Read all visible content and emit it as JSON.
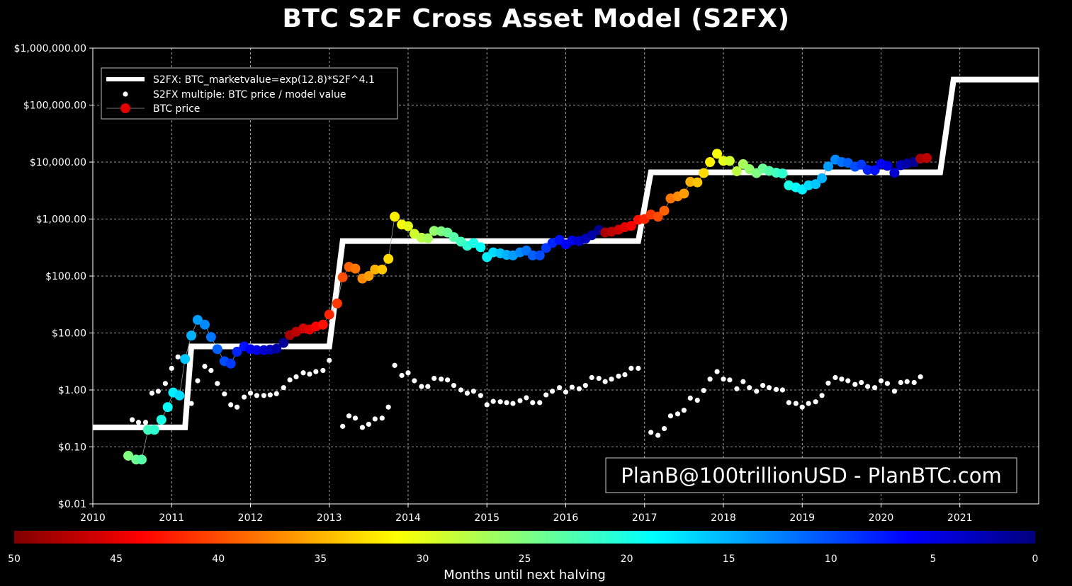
{
  "chart_data": {
    "type": "scatter",
    "title": "BTC S2F Cross Asset Model (S2FX)",
    "y_scale": "log",
    "ylim": [
      0.01,
      1000000
    ],
    "xlim": [
      2010,
      2022
    ],
    "y_tick_values": [
      0.01,
      0.1,
      1,
      10,
      100,
      1000,
      10000,
      100000,
      1000000
    ],
    "y_tick_labels": [
      "$0.01",
      "$0.10",
      "$1.00",
      "$10.00",
      "$100.00",
      "$1,000.00",
      "$10,000.00",
      "$100,000.00",
      "$1,000,000.00"
    ],
    "x_tick_values": [
      2010,
      2011,
      2012,
      2013,
      2014,
      2015,
      2016,
      2017,
      2018,
      2019,
      2020,
      2021
    ],
    "x_tick_labels": [
      "2010",
      "2011",
      "2012",
      "2013",
      "2014",
      "2015",
      "2016",
      "2017",
      "2018",
      "2019",
      "2020",
      "2021"
    ],
    "grid": true,
    "legend_position": "top-left",
    "legend": [
      {
        "label": "S2FX: BTC_marketvalue=exp(12.8)*S2F^4.1",
        "style": "line",
        "color": "#ffffff"
      },
      {
        "label": "S2FX multiple: BTC price / model value",
        "style": "dot",
        "color": "#ffffff"
      },
      {
        "label": "BTC price",
        "style": "dot",
        "color": "#e00000"
      }
    ],
    "model_line": {
      "name": "S2FX: BTC_marketvalue=exp(12.8)*S2F^4.1",
      "x": [
        2010,
        2011.17,
        2011.25,
        2013.0,
        2013.17,
        2016.92,
        2017.08,
        2020.75,
        2020.92,
        2022
      ],
      "y": [
        0.22,
        0.22,
        5.8,
        5.8,
        410,
        410,
        6600,
        6600,
        280000,
        280000
      ]
    },
    "multiple_series": {
      "name": "S2FX multiple: BTC price / model value",
      "x": [
        2010.5,
        2010.58,
        2010.67,
        2010.75,
        2010.83,
        2010.92,
        2011.0,
        2011.08,
        2011.17,
        2011.25,
        2011.33,
        2011.42,
        2011.5,
        2011.58,
        2011.67,
        2011.75,
        2011.83,
        2011.92,
        2012.0,
        2012.08,
        2012.17,
        2012.25,
        2012.33,
        2012.42,
        2012.5,
        2012.58,
        2012.67,
        2012.75,
        2012.83,
        2012.92,
        2013.0,
        2013.17,
        2013.25,
        2013.33,
        2013.42,
        2013.5,
        2013.58,
        2013.67,
        2013.75,
        2013.83,
        2013.92,
        2014.0,
        2014.08,
        2014.17,
        2014.25,
        2014.33,
        2014.42,
        2014.5,
        2014.58,
        2014.67,
        2014.75,
        2014.83,
        2014.92,
        2015.0,
        2015.08,
        2015.17,
        2015.25,
        2015.33,
        2015.42,
        2015.5,
        2015.58,
        2015.67,
        2015.75,
        2015.83,
        2015.92,
        2016.0,
        2016.08,
        2016.17,
        2016.25,
        2016.33,
        2016.42,
        2016.5,
        2016.58,
        2016.67,
        2016.75,
        2016.83,
        2016.92,
        2017.08,
        2017.17,
        2017.25,
        2017.33,
        2017.42,
        2017.5,
        2017.58,
        2017.67,
        2017.75,
        2017.83,
        2017.92,
        2018.0,
        2018.08,
        2018.17,
        2018.25,
        2018.33,
        2018.42,
        2018.5,
        2018.58,
        2018.67,
        2018.75,
        2018.83,
        2018.92,
        2019.0,
        2019.08,
        2019.17,
        2019.25,
        2019.33,
        2019.42,
        2019.5,
        2019.58,
        2019.67,
        2019.75,
        2019.83,
        2019.92,
        2020.0,
        2020.08,
        2020.17,
        2020.25,
        2020.33,
        2020.42,
        2020.5
      ],
      "y": [
        0.3,
        0.27,
        0.27,
        0.88,
        0.95,
        1.3,
        2.4,
        3.8,
        3.5,
        0.58,
        1.45,
        2.6,
        2.2,
        1.3,
        0.85,
        0.55,
        0.5,
        0.75,
        0.88,
        0.8,
        0.8,
        0.82,
        0.86,
        1.1,
        1.5,
        1.7,
        2.0,
        1.9,
        2.1,
        2.2,
        3.3,
        0.23,
        0.35,
        0.32,
        0.22,
        0.25,
        0.31,
        0.32,
        0.5,
        2.7,
        1.8,
        2.0,
        1.45,
        1.15,
        1.15,
        1.6,
        1.55,
        1.5,
        1.2,
        1.0,
        0.88,
        0.95,
        0.8,
        0.55,
        0.63,
        0.62,
        0.6,
        0.58,
        0.65,
        0.73,
        0.6,
        0.6,
        0.82,
        0.95,
        1.1,
        0.92,
        1.12,
        1.05,
        1.2,
        1.65,
        1.6,
        1.4,
        1.55,
        1.75,
        1.85,
        2.4,
        2.4,
        0.18,
        0.16,
        0.21,
        0.35,
        0.38,
        0.44,
        0.72,
        0.66,
        0.98,
        1.55,
        2.1,
        1.55,
        1.5,
        1.05,
        1.4,
        1.1,
        0.95,
        1.2,
        1.1,
        1.02,
        1.0,
        0.6,
        0.58,
        0.5,
        0.58,
        0.62,
        0.8,
        1.32,
        1.65,
        1.55,
        1.45,
        1.25,
        1.35,
        1.15,
        1.1,
        1.45,
        1.3,
        0.95,
        1.35,
        1.4,
        1.35,
        1.7
      ]
    },
    "price_series": {
      "name": "BTC price",
      "colorbar_variable": "months_until_next_halving",
      "x": [
        2010.45,
        2010.55,
        2010.62,
        2010.7,
        2010.78,
        2010.87,
        2010.95,
        2011.02,
        2011.1,
        2011.17,
        2011.25,
        2011.33,
        2011.42,
        2011.5,
        2011.58,
        2011.67,
        2011.75,
        2011.83,
        2011.92,
        2012.0,
        2012.08,
        2012.17,
        2012.25,
        2012.33,
        2012.42,
        2012.5,
        2012.58,
        2012.67,
        2012.75,
        2012.83,
        2012.92,
        2013.0,
        2013.1,
        2013.17,
        2013.25,
        2013.33,
        2013.42,
        2013.5,
        2013.58,
        2013.67,
        2013.75,
        2013.83,
        2013.92,
        2014.0,
        2014.08,
        2014.17,
        2014.25,
        2014.33,
        2014.42,
        2014.5,
        2014.58,
        2014.67,
        2014.75,
        2014.83,
        2014.92,
        2015.0,
        2015.08,
        2015.17,
        2015.25,
        2015.33,
        2015.42,
        2015.5,
        2015.58,
        2015.67,
        2015.75,
        2015.83,
        2015.92,
        2016.0,
        2016.08,
        2016.17,
        2016.25,
        2016.33,
        2016.42,
        2016.5,
        2016.58,
        2016.67,
        2016.75,
        2016.83,
        2016.92,
        2017.0,
        2017.08,
        2017.17,
        2017.25,
        2017.33,
        2017.42,
        2017.5,
        2017.58,
        2017.67,
        2017.75,
        2017.83,
        2017.92,
        2018.0,
        2018.08,
        2018.17,
        2018.25,
        2018.33,
        2018.42,
        2018.5,
        2018.58,
        2018.67,
        2018.75,
        2018.83,
        2018.92,
        2019.0,
        2019.08,
        2019.17,
        2019.25,
        2019.33,
        2019.42,
        2019.5,
        2019.58,
        2019.67,
        2019.75,
        2019.83,
        2019.92,
        2020.0,
        2020.08,
        2020.17,
        2020.25,
        2020.33,
        2020.42,
        2020.5,
        2020.58
      ],
      "y": [
        0.07,
        0.06,
        0.06,
        0.2,
        0.2,
        0.3,
        0.5,
        0.9,
        0.8,
        3.5,
        9.0,
        17,
        14,
        8.5,
        5.2,
        3.2,
        2.9,
        4.7,
        5.8,
        5.2,
        5.0,
        5.0,
        5.1,
        5.3,
        6.7,
        9.2,
        10.5,
        12,
        11.5,
        13,
        14,
        21,
        33,
        95,
        145,
        135,
        90,
        100,
        130,
        130,
        200,
        1100,
        800,
        750,
        550,
        470,
        460,
        620,
        610,
        580,
        480,
        400,
        340,
        380,
        320,
        215,
        260,
        250,
        235,
        230,
        260,
        280,
        230,
        230,
        310,
        380,
        430,
        360,
        420,
        410,
        450,
        520,
        640,
        580,
        600,
        650,
        720,
        760,
        970,
        1000,
        1200,
        1100,
        1400,
        2300,
        2500,
        2800,
        4500,
        4400,
        6400,
        10000,
        14000,
        10500,
        10500,
        6900,
        9200,
        7500,
        6400,
        7700,
        7000,
        6500,
        6300,
        3900,
        3600,
        3300,
        3900,
        4100,
        5200,
        8400,
        11000,
        10000,
        9700,
        8300,
        9000,
        7300,
        7200,
        9300,
        8600,
        6500,
        8800,
        9400,
        10000,
        11500,
        11800
      ],
      "months_until_next_halving": [
        25,
        24,
        23,
        22,
        21,
        20,
        19,
        18,
        17,
        16,
        15,
        14,
        13,
        12,
        11,
        10,
        9,
        8,
        7,
        6,
        5,
        4,
        3,
        2,
        1,
        48,
        47,
        46,
        45,
        44,
        43,
        42,
        41,
        40,
        39,
        38,
        37,
        36,
        35,
        34,
        33,
        32,
        31,
        30,
        29,
        28,
        27,
        26,
        25,
        24,
        23,
        22,
        21,
        20,
        19,
        18,
        17,
        16,
        15,
        14,
        13,
        12,
        11,
        10,
        9,
        8,
        7,
        6,
        5,
        4,
        3,
        2,
        1,
        48,
        47,
        46,
        45,
        44,
        43,
        42,
        41,
        40,
        39,
        38,
        37,
        36,
        35,
        34,
        33,
        32,
        31,
        30,
        29,
        28,
        27,
        26,
        25,
        24,
        23,
        22,
        21,
        20,
        19,
        18,
        17,
        16,
        15,
        14,
        13,
        12,
        11,
        10,
        9,
        8,
        7,
        6,
        5,
        4,
        3,
        2,
        1,
        48,
        47
      ]
    },
    "colorbar": {
      "label": "Months until next halving",
      "ticks": [
        50,
        45,
        40,
        35,
        30,
        25,
        20,
        15,
        10,
        5,
        0
      ],
      "tick_labels": [
        "50",
        "45",
        "40",
        "35",
        "30",
        "25",
        "20",
        "15",
        "10",
        "5",
        "0"
      ]
    }
  },
  "watermark": {
    "text": "PlanB@100trillionUSD  -  PlanBTC.com"
  }
}
